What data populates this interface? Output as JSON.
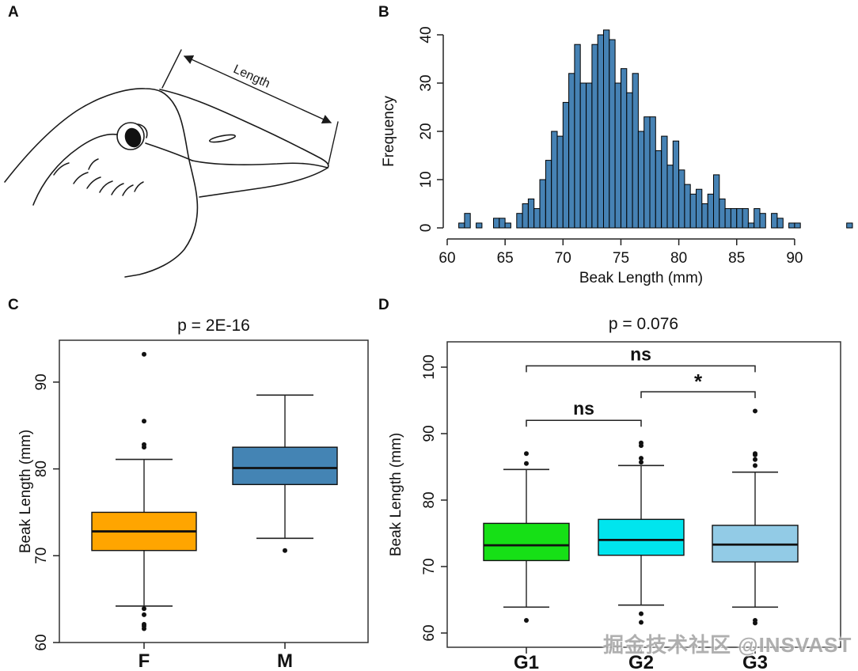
{
  "figure": {
    "panels": [
      {
        "id": "A",
        "label": "A"
      },
      {
        "id": "B",
        "label": "B"
      },
      {
        "id": "C",
        "label": "C"
      },
      {
        "id": "D",
        "label": "D"
      }
    ]
  },
  "panel_a": {
    "annotation": "Length",
    "description": "line drawing of bird head with beak length dimension arrow"
  },
  "watermark": {
    "text": "掘金技术社区 @INSVAST"
  },
  "chart_data": [
    {
      "panel": "B",
      "type": "bar",
      "subtype": "histogram",
      "title": "",
      "xlabel": "Beak Length (mm)",
      "ylabel": "Frequency",
      "bar_color": "#4682B4",
      "bar_edge": "#000000",
      "bin_start": 61.0,
      "bin_width": 0.5,
      "counts": [
        1,
        3,
        0,
        1,
        0,
        0,
        2,
        2,
        1,
        0,
        3,
        5,
        6,
        4,
        10,
        14,
        20,
        19,
        26,
        32,
        38,
        30,
        30,
        38,
        40,
        41,
        39,
        30,
        33,
        28,
        32,
        20,
        23,
        23,
        16,
        19,
        13,
        18,
        12,
        9,
        7,
        8,
        5,
        7,
        11,
        6,
        4,
        4,
        4,
        4,
        1,
        4,
        3,
        0,
        3,
        2,
        0,
        1,
        1,
        0,
        0,
        0,
        0,
        0,
        0,
        0,
        0,
        1
      ],
      "x_ticks": [
        60,
        65,
        70,
        75,
        80,
        85,
        90
      ],
      "y_ticks": [
        0,
        10,
        20,
        30,
        40
      ],
      "xlim": [
        60,
        95
      ],
      "ylim": [
        0,
        41
      ],
      "grid": false,
      "legend": false
    },
    {
      "panel": "C",
      "type": "boxplot",
      "title": "p = 2E-16",
      "xlabel": "",
      "ylabel": "Beak Length (mm)",
      "y_ticks": [
        60,
        70,
        80,
        90
      ],
      "ylim": [
        60,
        95
      ],
      "grid": false,
      "groups": [
        {
          "label": "F",
          "color": "#FFA500",
          "whisker_low": 64.2,
          "q1": 70.6,
          "median": 72.8,
          "q3": 75.0,
          "whisker_high": 81.1,
          "outliers": [
            61.6,
            61.9,
            62.1,
            63.2,
            63.9,
            82.5,
            82.8,
            85.5,
            93.2
          ]
        },
        {
          "label": "M",
          "color": "#4484B4",
          "whisker_low": 72.0,
          "q1": 78.2,
          "median": 80.1,
          "q3": 82.5,
          "whisker_high": 88.5,
          "outliers": [
            70.6
          ]
        }
      ]
    },
    {
      "panel": "D",
      "type": "boxplot",
      "title": "p = 0.076",
      "xlabel": "",
      "ylabel": "Beak Length (mm)",
      "y_ticks": [
        60,
        70,
        80,
        90,
        100
      ],
      "ylim": [
        60,
        104
      ],
      "grid": false,
      "groups": [
        {
          "label": "G1",
          "color": "#16E016",
          "whisker_low": 63.9,
          "q1": 70.9,
          "median": 73.2,
          "q3": 76.5,
          "whisker_high": 84.6,
          "outliers": [
            61.9,
            85.5,
            87.0
          ]
        },
        {
          "label": "G2",
          "color": "#00E5EE",
          "whisker_low": 64.2,
          "q1": 71.7,
          "median": 74.0,
          "q3": 77.1,
          "whisker_high": 85.2,
          "outliers": [
            61.6,
            62.9,
            85.7,
            86.3,
            88.2,
            88.6
          ]
        },
        {
          "label": "G3",
          "color": "#92CBE6",
          "whisker_low": 63.9,
          "q1": 70.7,
          "median": 73.3,
          "q3": 76.2,
          "whisker_high": 84.2,
          "outliers": [
            61.5,
            61.9,
            85.2,
            86.1,
            86.8,
            87.0,
            93.4
          ]
        }
      ],
      "comparisons": [
        {
          "a": "G1",
          "b": "G2",
          "label": "ns",
          "y": 92.0
        },
        {
          "a": "G2",
          "b": "G3",
          "label": "*",
          "y": 96.3
        },
        {
          "a": "G1",
          "b": "G3",
          "label": "ns",
          "y": 100.2
        }
      ]
    }
  ]
}
